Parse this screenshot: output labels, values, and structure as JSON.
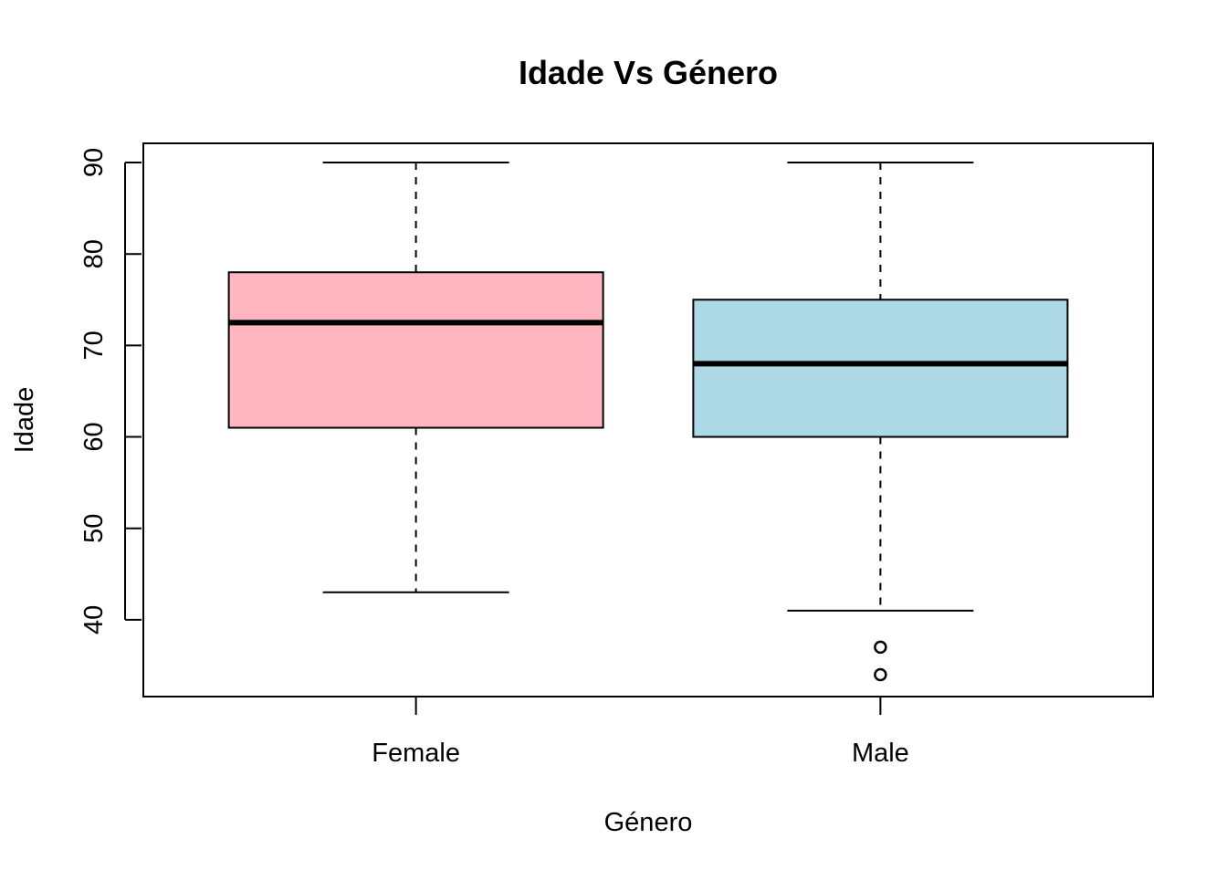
{
  "chart_data": {
    "type": "boxplot",
    "title": "Idade Vs Género",
    "xlabel": "Género",
    "ylabel": "Idade",
    "categories": [
      "Female",
      "Male"
    ],
    "ylim": [
      31.6,
      92.1
    ],
    "yticks": [
      40,
      50,
      60,
      70,
      80,
      90
    ],
    "grid": false,
    "legend": "none",
    "boxes": [
      {
        "category": "Female",
        "whisker_low": 43,
        "q1": 61,
        "median": 72.5,
        "q3": 78,
        "whisker_high": 90,
        "outliers": [],
        "color": "#FFB6C1"
      },
      {
        "category": "Male",
        "whisker_low": 41,
        "q1": 60,
        "median": 68,
        "q3": 75,
        "whisker_high": 90,
        "outliers": [
          37,
          34
        ],
        "color": "#ADD8E6"
      }
    ]
  }
}
